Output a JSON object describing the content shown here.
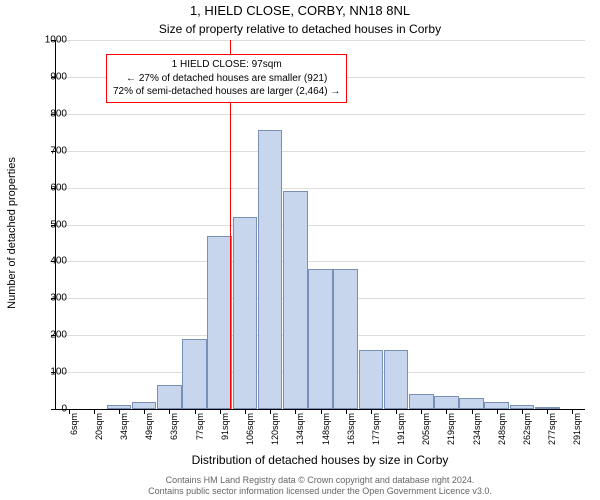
{
  "title_main": "1, HIELD CLOSE, CORBY, NN18 8NL",
  "title_sub": "Size of property relative to detached houses in Corby",
  "ylabel": "Number of detached properties",
  "xlabel": "Distribution of detached houses by size in Corby",
  "footer_line1": "Contains HM Land Registry data © Crown copyright and database right 2024.",
  "footer_line2": "Contains public sector information licensed under the Open Government Licence v3.0.",
  "chart": {
    "type": "histogram",
    "background_color": "#ffffff",
    "grid_color": "#dddddd",
    "axis_color": "#000000",
    "bar_fill": "#c8d6ed",
    "bar_stroke": "#7a8fb8",
    "ref_line_color": "#ff0000",
    "anno_border_color": "#ff0000",
    "ylim": [
      0,
      1000
    ],
    "ytick_step": 100,
    "xticks": [
      "6sqm",
      "20sqm",
      "34sqm",
      "49sqm",
      "63sqm",
      "77sqm",
      "91sqm",
      "106sqm",
      "120sqm",
      "134sqm",
      "148sqm",
      "163sqm",
      "177sqm",
      "191sqm",
      "205sqm",
      "219sqm",
      "234sqm",
      "248sqm",
      "262sqm",
      "277sqm",
      "291sqm"
    ],
    "bars": [
      0,
      0,
      10,
      20,
      65,
      190,
      470,
      520,
      755,
      590,
      380,
      380,
      160,
      160,
      40,
      35,
      30,
      20,
      10,
      5,
      0
    ],
    "ref_line_bin": 6.42,
    "title_fontsize": 13,
    "subtitle_fontsize": 12,
    "label_fontsize": 11,
    "tick_fontsize": 10,
    "footer_fontsize": 9,
    "anno_lines": [
      "1 HIELD CLOSE: 97sqm",
      "← 27% of detached houses are smaller (921)",
      "72% of semi-detached houses are larger (2,464) →"
    ]
  }
}
